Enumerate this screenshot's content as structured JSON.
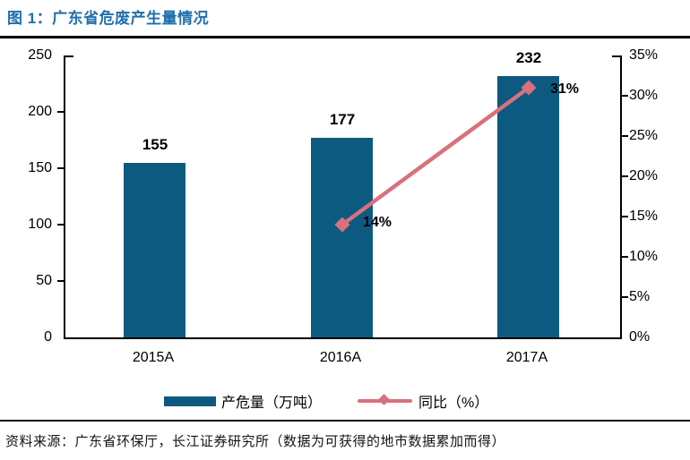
{
  "title": "图 1：广东省危废产生量情况",
  "source_note": "资料来源：广东省环保厅，长江证券研究所（数据为可获得的地市数据累加而得）",
  "colors": {
    "title_blue": "#1e6eaf",
    "bar_blue": "#0d5a80",
    "line_pink": "#d9717d",
    "axis_black": "#000000"
  },
  "chart_data": {
    "type": "bar",
    "subtype": "bar-line-combo",
    "categories": [
      "2015A",
      "2016A",
      "2017A"
    ],
    "series": [
      {
        "name": "产危量（万吨）",
        "type": "bar",
        "axis": "left",
        "values": [
          155,
          177,
          232
        ]
      },
      {
        "name": "同比（%）",
        "type": "line",
        "axis": "right",
        "values": [
          null,
          14,
          31
        ]
      }
    ],
    "bar_labels": [
      "155",
      "177",
      "232"
    ],
    "line_labels": [
      "14%",
      "31%"
    ],
    "left_axis": {
      "min": 0,
      "max": 250,
      "ticks": [
        "250",
        "200",
        "150",
        "100",
        "50",
        "0"
      ]
    },
    "right_axis": {
      "min": 0,
      "max": 35,
      "ticks": [
        "35%",
        "30%",
        "25%",
        "20%",
        "15%",
        "10%",
        "5%",
        "0%"
      ]
    },
    "legend": [
      "产危量（万吨）",
      "同比（%）"
    ],
    "legend_position": "bottom",
    "grid": false
  }
}
